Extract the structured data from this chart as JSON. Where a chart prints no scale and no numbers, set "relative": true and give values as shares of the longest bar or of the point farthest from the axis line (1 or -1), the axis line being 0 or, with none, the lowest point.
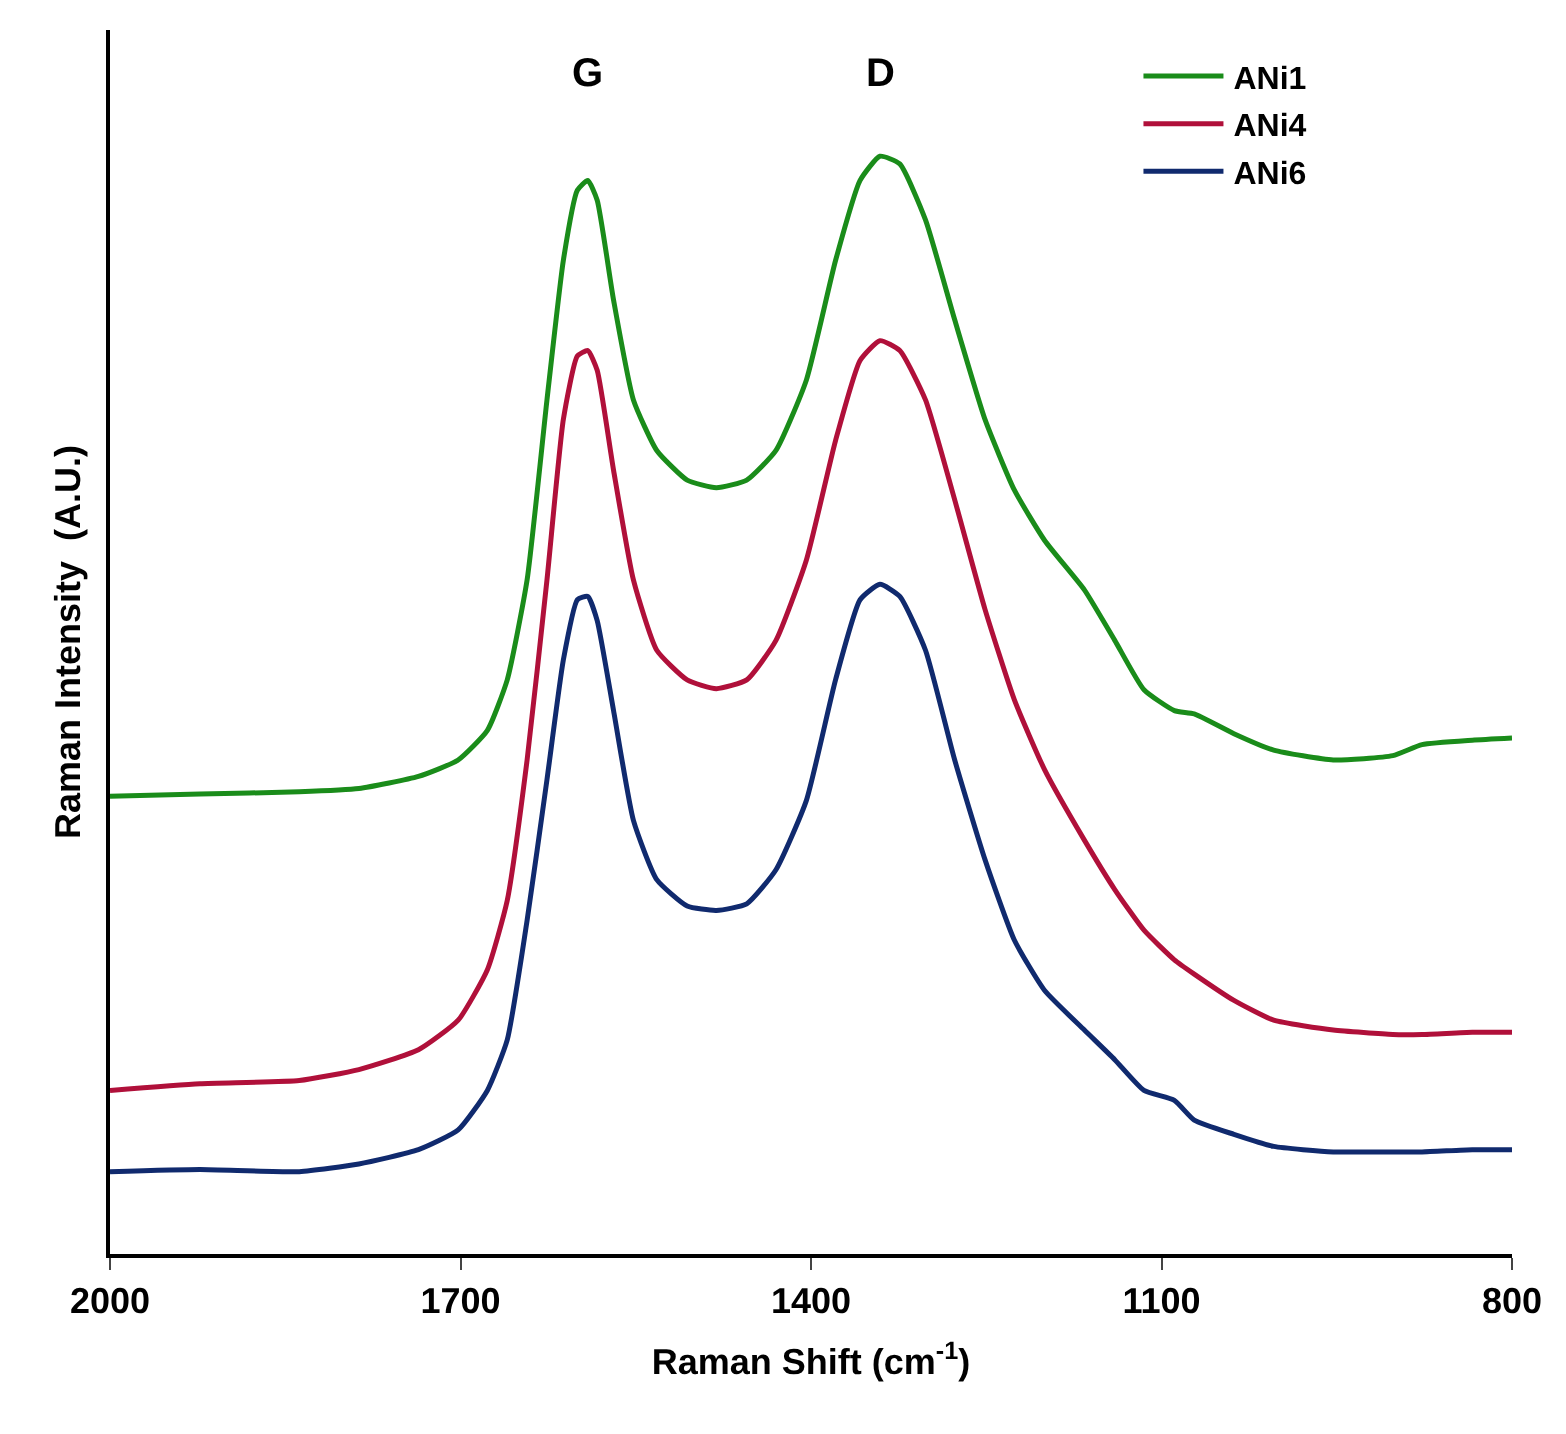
{
  "chart_data": {
    "type": "line",
    "relative": true,
    "xlabel": "Raman Shift (cm$^{-1}$)",
    "ylabel": "Raman Intensity  (A.U.)",
    "xlim": [
      2000,
      800
    ],
    "xticks": [
      2000,
      1700,
      1400,
      1100,
      800
    ],
    "tick_labels": "x",
    "grid": false,
    "legend": "top right",
    "marker": "none",
    "line_style": "solid",
    "annotations": [
      "G",
      "D"
    ],
    "x": [
      2000,
      1923,
      1838,
      1787,
      1736,
      1702,
      1677,
      1660,
      1643,
      1626,
      1612,
      1600,
      1591,
      1583,
      1569,
      1552,
      1532,
      1506,
      1481,
      1455,
      1430,
      1404,
      1379,
      1358,
      1341,
      1324,
      1302,
      1277,
      1251,
      1226,
      1200,
      1166,
      1140,
      1115,
      1089,
      1072,
      1038,
      1004,
      953,
      902,
      877,
      834,
      800
    ],
    "series": [
      {
        "name": "ANi1",
        "color": "#1a8c1a",
        "values": [
          0.417,
          0.419,
          0.421,
          0.424,
          0.435,
          0.45,
          0.477,
          0.523,
          0.614,
          0.778,
          0.905,
          0.969,
          0.978,
          0.96,
          0.869,
          0.778,
          0.732,
          0.705,
          0.698,
          0.705,
          0.732,
          0.796,
          0.905,
          0.978,
          1.0,
          0.993,
          0.942,
          0.851,
          0.76,
          0.696,
          0.65,
          0.605,
          0.559,
          0.514,
          0.495,
          0.492,
          0.474,
          0.459,
          0.45,
          0.454,
          0.464,
          0.468,
          0.47
        ]
      },
      {
        "name": "ANi4",
        "color": "#b0103a",
        "values": [
          0.149,
          0.155,
          0.158,
          0.168,
          0.186,
          0.213,
          0.259,
          0.322,
          0.45,
          0.614,
          0.76,
          0.818,
          0.823,
          0.805,
          0.714,
          0.614,
          0.55,
          0.523,
          0.515,
          0.523,
          0.559,
          0.632,
          0.741,
          0.814,
          0.832,
          0.823,
          0.778,
          0.687,
          0.587,
          0.505,
          0.441,
          0.377,
          0.332,
          0.295,
          0.268,
          0.255,
          0.231,
          0.213,
          0.204,
          0.2,
          0.2,
          0.202,
          0.202
        ]
      },
      {
        "name": "ANi6",
        "color": "#102a6e",
        "values": [
          0.075,
          0.077,
          0.075,
          0.082,
          0.095,
          0.113,
          0.149,
          0.195,
          0.304,
          0.432,
          0.541,
          0.596,
          0.599,
          0.577,
          0.495,
          0.395,
          0.341,
          0.317,
          0.313,
          0.319,
          0.35,
          0.413,
          0.523,
          0.596,
          0.61,
          0.599,
          0.55,
          0.45,
          0.359,
          0.286,
          0.24,
          0.204,
          0.177,
          0.149,
          0.14,
          0.122,
          0.109,
          0.098,
          0.093,
          0.093,
          0.093,
          0.095,
          0.095
        ]
      }
    ]
  }
}
